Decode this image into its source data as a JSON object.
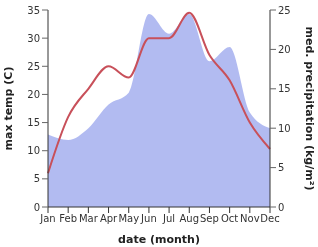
{
  "chart_data": {
    "type": "line",
    "xlabel": "date (month)",
    "ylabel": "max temp (C)",
    "y2label": "med. precipitation (kg/m²)",
    "categories": [
      "Jan",
      "Feb",
      "Mar",
      "Apr",
      "May",
      "Jun",
      "Jul",
      "Aug",
      "Sep",
      "Oct",
      "Nov",
      "Dec"
    ],
    "series": [
      {
        "name": "med. precipitation",
        "type": "area",
        "axis": "y2",
        "color": "#aab4f0",
        "values": [
          9.2,
          8.5,
          10,
          13,
          14.5,
          24.5,
          22,
          24.5,
          18.5,
          20.3,
          12,
          10
        ]
      },
      {
        "name": "max temp",
        "type": "line",
        "axis": "y",
        "color": "#c8505a",
        "values": [
          6,
          16,
          21,
          25,
          23,
          30,
          30,
          34.5,
          27,
          22.5,
          15,
          10.3
        ]
      }
    ],
    "ylim": [
      0,
      35
    ],
    "yticks": [
      0,
      5,
      10,
      15,
      20,
      25,
      30,
      35
    ],
    "y2lim": [
      0,
      25
    ],
    "y2ticks": [
      0,
      5,
      10,
      15,
      20,
      25
    ]
  }
}
